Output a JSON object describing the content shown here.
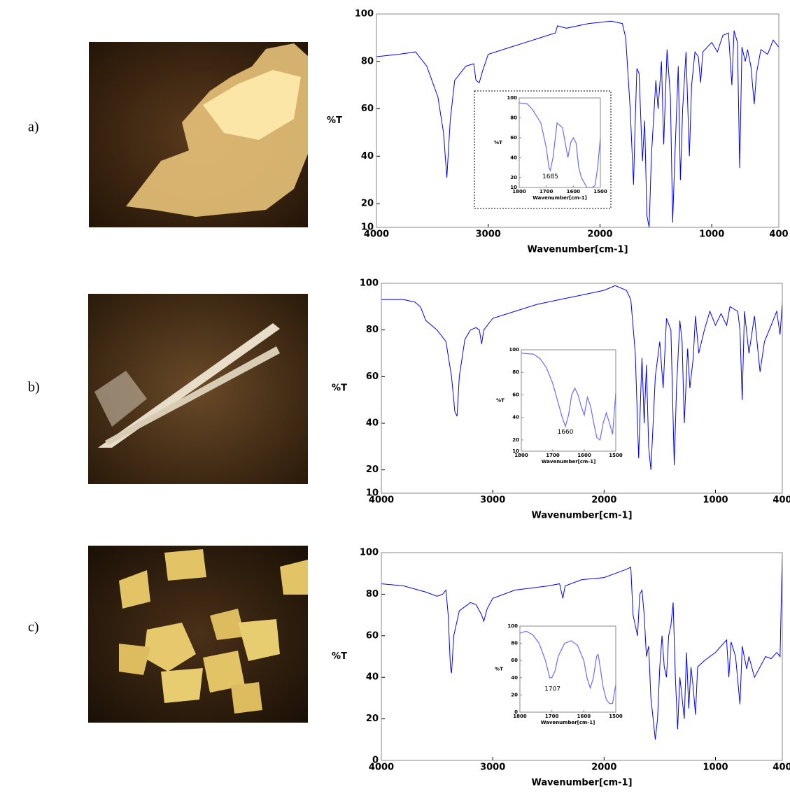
{
  "panel_labels": [
    "a)",
    "b)",
    "c)"
  ],
  "chart_data": [
    {
      "type": "line",
      "ylabel": "%T",
      "xlabel": "Wavenumber[cm-1]",
      "color": "#0000ff",
      "xlim": [
        4000,
        400
      ],
      "ylim": [
        10,
        100
      ],
      "xticks": [
        4000,
        3000,
        2000,
        1000,
        400
      ],
      "yticks": [
        10,
        20,
        40,
        60,
        80,
        100
      ],
      "x": [
        4000,
        3800,
        3650,
        3550,
        3450,
        3400,
        3370,
        3340,
        3300,
        3200,
        3130,
        3110,
        3080,
        3050,
        3000,
        2800,
        2600,
        2400,
        2380,
        2300,
        2100,
        1900,
        1800,
        1770,
        1730,
        1700,
        1685,
        1670,
        1650,
        1620,
        1600,
        1580,
        1560,
        1540,
        1500,
        1480,
        1450,
        1430,
        1400,
        1370,
        1350,
        1330,
        1300,
        1280,
        1260,
        1230,
        1200,
        1180,
        1150,
        1120,
        1100,
        1080,
        1000,
        950,
        900,
        850,
        820,
        800,
        770,
        750,
        730,
        700,
        680,
        650,
        620,
        600,
        560,
        500,
        450,
        400
      ],
      "values": [
        82,
        83,
        84,
        78,
        65,
        50,
        31,
        55,
        72,
        78,
        79,
        72,
        71,
        76,
        83,
        86,
        89,
        92,
        95,
        94,
        96,
        97,
        96,
        90,
        60,
        28,
        55,
        77,
        75,
        38,
        55,
        15,
        10,
        40,
        72,
        60,
        80,
        45,
        85,
        65,
        12,
        40,
        78,
        30,
        60,
        84,
        40,
        70,
        84,
        82,
        71,
        84,
        88,
        84,
        91,
        92,
        70,
        93,
        88,
        35,
        86,
        80,
        85,
        78,
        62,
        75,
        85,
        83,
        89,
        86
      ]
    },
    {
      "type": "line",
      "ylabel": "%T",
      "xlabel": "Wavenumber[cm-1]",
      "color": "#6b6bff",
      "xlim": [
        1800,
        1500
      ],
      "ylim": [
        10,
        100
      ],
      "xticks": [
        1800,
        1700,
        1600,
        1500
      ],
      "yticks": [
        10,
        20,
        40,
        60,
        80,
        100
      ],
      "x": [
        1800,
        1770,
        1750,
        1720,
        1700,
        1690,
        1685,
        1675,
        1660,
        1640,
        1630,
        1620,
        1610,
        1600,
        1590,
        1580,
        1570,
        1560,
        1550,
        1530,
        1520,
        1510,
        1500
      ],
      "values": [
        95,
        94,
        88,
        75,
        50,
        30,
        27,
        40,
        75,
        70,
        55,
        40,
        55,
        60,
        55,
        30,
        20,
        15,
        10,
        10,
        12,
        30,
        60
      ],
      "annotations": [
        {
          "text": "1685",
          "x": 1685,
          "y": 21
        }
      ]
    },
    {
      "type": "line",
      "ylabel": "%T",
      "xlabel": "Wavenumber[cm-1]",
      "color": "#0000ff",
      "xlim": [
        4000,
        400
      ],
      "ylim": [
        10,
        100
      ],
      "xticks": [
        4000,
        3000,
        2000,
        1000,
        400
      ],
      "yticks": [
        10,
        20,
        40,
        60,
        80,
        100
      ],
      "x": [
        4000,
        3800,
        3700,
        3650,
        3600,
        3500,
        3420,
        3370,
        3340,
        3320,
        3300,
        3250,
        3200,
        3150,
        3120,
        3100,
        3080,
        3000,
        2800,
        2600,
        2400,
        2200,
        2000,
        1900,
        1800,
        1760,
        1720,
        1690,
        1670,
        1660,
        1640,
        1620,
        1600,
        1580,
        1560,
        1540,
        1500,
        1470,
        1440,
        1400,
        1370,
        1350,
        1320,
        1300,
        1280,
        1250,
        1230,
        1200,
        1180,
        1150,
        1100,
        1050,
        1000,
        950,
        900,
        870,
        800,
        780,
        760,
        740,
        700,
        650,
        600,
        560,
        500,
        450,
        420,
        400
      ],
      "values": [
        93,
        93,
        92,
        90,
        84,
        80,
        75,
        60,
        45,
        43,
        60,
        76,
        80,
        81,
        80,
        74,
        80,
        85,
        88,
        91,
        93,
        95,
        97,
        99,
        97,
        93,
        70,
        25,
        55,
        68,
        40,
        65,
        30,
        20,
        40,
        60,
        75,
        55,
        85,
        80,
        22,
        55,
        84,
        75,
        40,
        72,
        55,
        68,
        86,
        70,
        80,
        88,
        82,
        87,
        82,
        90,
        88,
        80,
        50,
        88,
        70,
        86,
        62,
        75,
        82,
        88,
        78,
        92
      ]
    },
    {
      "type": "line",
      "ylabel": "%T",
      "xlabel": "Wavenumber[cm-1]",
      "color": "#6b6bff",
      "xlim": [
        1800,
        1500
      ],
      "ylim": [
        10,
        100
      ],
      "xticks": [
        1800,
        1700,
        1600,
        1500
      ],
      "yticks": [
        10,
        20,
        40,
        60,
        80,
        100
      ],
      "x": [
        1800,
        1760,
        1740,
        1720,
        1700,
        1680,
        1670,
        1660,
        1650,
        1640,
        1630,
        1620,
        1610,
        1600,
        1590,
        1580,
        1570,
        1560,
        1550,
        1540,
        1530,
        1520,
        1510,
        1500
      ],
      "values": [
        97,
        96,
        92,
        84,
        70,
        50,
        40,
        32,
        42,
        60,
        66,
        60,
        50,
        42,
        58,
        50,
        35,
        22,
        20,
        35,
        44,
        35,
        25,
        62
      ],
      "annotations": [
        {
          "text": "1660",
          "x": 1660,
          "y": 27
        }
      ]
    },
    {
      "type": "line",
      "ylabel": "%T",
      "xlabel": "Wavenumber[cm-1]",
      "color": "#0000ff",
      "xlim": [
        4000,
        400
      ],
      "ylim": [
        0,
        100
      ],
      "xticks": [
        4000,
        3000,
        2000,
        1000,
        400
      ],
      "yticks": [
        0,
        20,
        40,
        60,
        80,
        100
      ],
      "x": [
        4000,
        3800,
        3600,
        3500,
        3450,
        3420,
        3400,
        3380,
        3370,
        3350,
        3300,
        3200,
        3150,
        3100,
        3080,
        3050,
        3000,
        2800,
        2500,
        2400,
        2370,
        2350,
        2200,
        2000,
        1900,
        1800,
        1760,
        1740,
        1700,
        1680,
        1660,
        1640,
        1620,
        1600,
        1580,
        1560,
        1540,
        1520,
        1500,
        1480,
        1460,
        1440,
        1420,
        1400,
        1380,
        1360,
        1340,
        1320,
        1300,
        1280,
        1260,
        1240,
        1220,
        1200,
        1180,
        1160,
        1100,
        1000,
        900,
        880,
        860,
        820,
        780,
        760,
        720,
        700,
        650,
        600,
        550,
        500,
        450,
        420,
        410,
        400
      ],
      "values": [
        85,
        84,
        81,
        79,
        80,
        82,
        70,
        45,
        42,
        60,
        72,
        76,
        75,
        70,
        67,
        73,
        78,
        82,
        84,
        85,
        78,
        84,
        87,
        88,
        90,
        92,
        93,
        70,
        60,
        80,
        82,
        70,
        50,
        55,
        30,
        20,
        10,
        20,
        45,
        60,
        45,
        40,
        60,
        65,
        76,
        40,
        15,
        40,
        30,
        20,
        52,
        25,
        45,
        35,
        22,
        45,
        48,
        52,
        58,
        40,
        57,
        50,
        27,
        55,
        44,
        50,
        40,
        45,
        50,
        49,
        52,
        50,
        75,
        100
      ]
    },
    {
      "type": "line",
      "ylabel": "%T",
      "xlabel": "Wavenumber[cm-1]",
      "color": "#6b6bff",
      "xlim": [
        1800,
        1500
      ],
      "ylim": [
        0,
        100
      ],
      "xticks": [
        1800,
        1700,
        1600,
        1500
      ],
      "yticks": [
        0,
        20,
        40,
        60,
        80,
        100
      ],
      "x": [
        1800,
        1780,
        1760,
        1740,
        1720,
        1710,
        1707,
        1700,
        1690,
        1680,
        1660,
        1640,
        1620,
        1600,
        1590,
        1580,
        1570,
        1560,
        1555,
        1550,
        1540,
        1530,
        1520,
        1510,
        1500
      ],
      "values": [
        92,
        94,
        90,
        80,
        60,
        45,
        40,
        40,
        48,
        65,
        80,
        83,
        78,
        60,
        40,
        28,
        40,
        65,
        67,
        55,
        30,
        15,
        10,
        10,
        32
      ],
      "annotations": [
        {
          "text": "1707",
          "x": 1698,
          "y": 27
        }
      ]
    }
  ]
}
